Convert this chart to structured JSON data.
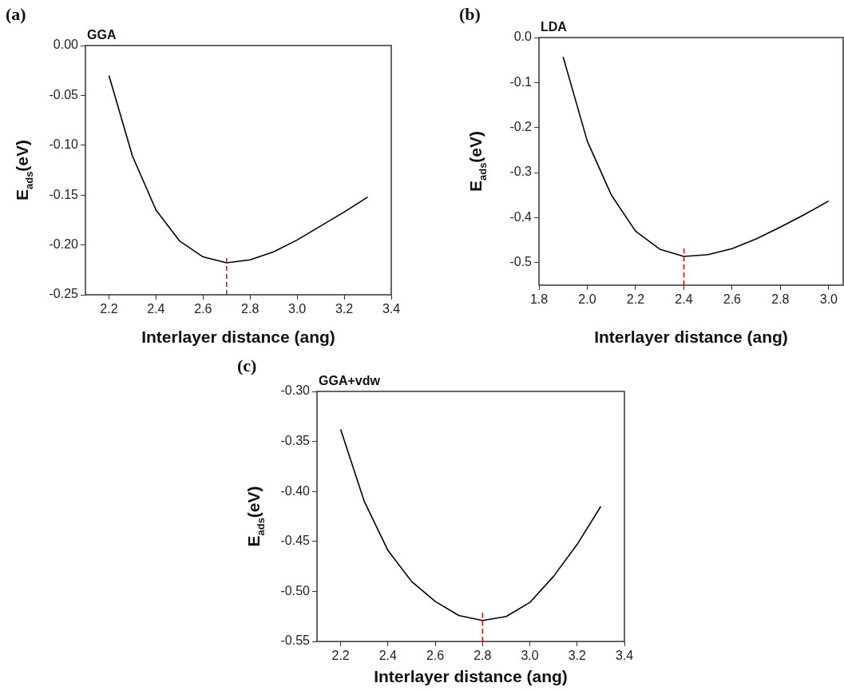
{
  "chart_data": [
    {
      "type": "line",
      "title": "GGA",
      "annotations": [
        "(a)"
      ],
      "xlabel": "Interlayer distance (ang)",
      "ylabel": "E$_{ads}$(eV)",
      "color": "#000000",
      "x": [
        2.2,
        2.3,
        2.4,
        2.5,
        2.6,
        2.7,
        2.8,
        2.9,
        3.0,
        3.1,
        3.2,
        3.3
      ],
      "values": [
        -0.03,
        -0.111,
        -0.165,
        -0.196,
        -0.212,
        -0.218,
        -0.215,
        -0.207,
        -0.195,
        -0.181,
        -0.167,
        -0.152
      ],
      "xlim": [
        2.1,
        3.4
      ],
      "xticks": [
        {
          "value": 2.2,
          "label": "2.2"
        },
        {
          "value": 2.4,
          "label": "2.4"
        },
        {
          "value": 2.6,
          "label": "2.6"
        },
        {
          "value": 2.8,
          "label": "2.8"
        },
        {
          "value": 3.0,
          "label": "3.0"
        },
        {
          "value": 3.2,
          "label": "3.2"
        },
        {
          "value": 3.4,
          "label": "3.4"
        }
      ],
      "ylim": [
        -0.25,
        0
      ],
      "yticks": [
        {
          "value": 0,
          "label": "0.00"
        },
        {
          "value": -0.05,
          "label": "-0.05"
        },
        {
          "value": -0.1,
          "label": "-0.10"
        },
        {
          "value": -0.15,
          "label": "-0.15"
        },
        {
          "value": -0.2,
          "label": "-0.20"
        },
        {
          "value": -0.25,
          "label": "-0.25"
        }
      ],
      "ref_lines": [
        {
          "axis": "x",
          "value": 2.7,
          "color": "#ff0000",
          "line_style": "dashed"
        }
      ]
    },
    {
      "type": "line",
      "title": "LDA",
      "annotations": [
        "(b)"
      ],
      "xlabel": "Interlayer distance (ang)",
      "ylabel": "E$_{ads}$(eV)",
      "color": "#000000",
      "x": [
        1.9,
        2.0,
        2.1,
        2.2,
        2.3,
        2.4,
        2.5,
        2.6,
        2.7,
        2.8,
        2.9,
        3.0
      ],
      "values": [
        -0.043,
        -0.23,
        -0.35,
        -0.43,
        -0.47,
        -0.486,
        -0.482,
        -0.469,
        -0.447,
        -0.421,
        -0.393,
        -0.363
      ],
      "xlim": [
        1.8,
        3.06
      ],
      "xticks": [
        {
          "value": 1.8,
          "label": "1.8"
        },
        {
          "value": 2.0,
          "label": "2.0"
        },
        {
          "value": 2.2,
          "label": "2.2"
        },
        {
          "value": 2.4,
          "label": "2.4"
        },
        {
          "value": 2.6,
          "label": "2.6"
        },
        {
          "value": 2.8,
          "label": "2.8"
        },
        {
          "value": 3.0,
          "label": "3.0"
        }
      ],
      "ylim": [
        -0.55,
        0
      ],
      "yticks": [
        {
          "value": 0,
          "label": "0.0"
        },
        {
          "value": -0.1,
          "label": "-0.1"
        },
        {
          "value": -0.2,
          "label": "-0.2"
        },
        {
          "value": -0.3,
          "label": "-0.3"
        },
        {
          "value": -0.4,
          "label": "-0.4"
        },
        {
          "value": -0.5,
          "label": "-0.5"
        }
      ],
      "ref_lines": [
        {
          "axis": "x",
          "value": 2.4,
          "color": "#ff0000",
          "line_style": "dashed"
        }
      ]
    },
    {
      "type": "line",
      "title": "GGA+vdw",
      "annotations": [
        "(c)"
      ],
      "xlabel": "Interlayer distance (ang)",
      "ylabel": "E$_{ads}$(eV)",
      "color": "#000000",
      "x": [
        2.2,
        2.3,
        2.4,
        2.5,
        2.6,
        2.7,
        2.8,
        2.9,
        3.0,
        3.1,
        3.2,
        3.3
      ],
      "values": [
        -0.338,
        -0.41,
        -0.459,
        -0.49,
        -0.51,
        -0.524,
        -0.529,
        -0.525,
        -0.511,
        -0.485,
        -0.453,
        -0.415
      ],
      "xlim": [
        2.1,
        3.4
      ],
      "xticks": [
        {
          "value": 2.2,
          "label": "2.2"
        },
        {
          "value": 2.4,
          "label": "2.4"
        },
        {
          "value": 2.6,
          "label": "2.6"
        },
        {
          "value": 2.8,
          "label": "2.8"
        },
        {
          "value": 3.0,
          "label": "3.0"
        },
        {
          "value": 3.2,
          "label": "3.2"
        },
        {
          "value": 3.4,
          "label": "3.4"
        }
      ],
      "ylim": [
        -0.55,
        -0.3
      ],
      "yticks": [
        {
          "value": -0.3,
          "label": "-0.30"
        },
        {
          "value": -0.35,
          "label": "-0.35"
        },
        {
          "value": -0.4,
          "label": "-0.40"
        },
        {
          "value": -0.45,
          "label": "-0.45"
        },
        {
          "value": -0.5,
          "label": "-0.50"
        },
        {
          "value": -0.55,
          "label": "-0.55"
        }
      ],
      "ref_lines": [
        {
          "axis": "x",
          "value": 2.8,
          "color": "#ff0000",
          "line_style": "dashed"
        }
      ]
    }
  ]
}
